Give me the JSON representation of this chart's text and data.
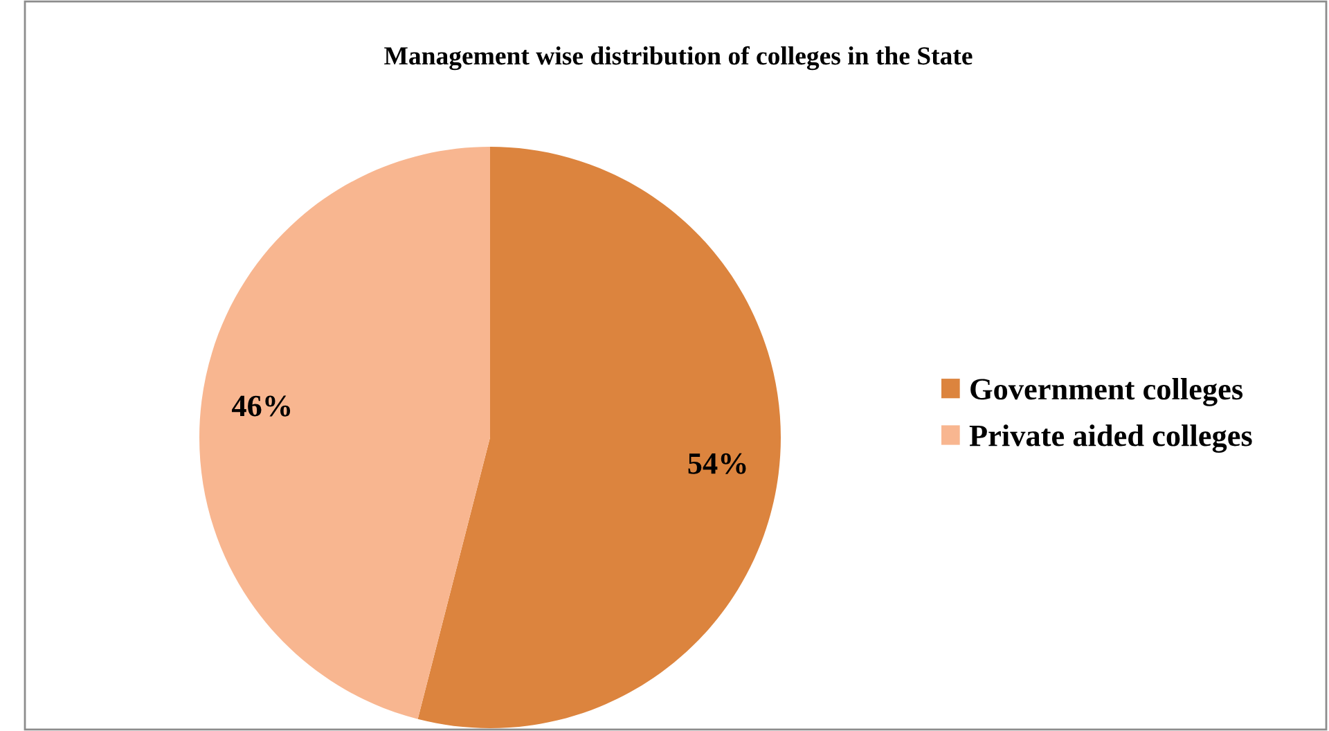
{
  "chart_data": {
    "type": "pie",
    "title": "Management wise distribution of colleges in the State",
    "categories": [
      "Government colleges",
      "Private aided colleges"
    ],
    "values": [
      54,
      46
    ],
    "colors": [
      "#dc843e",
      "#f8b690"
    ],
    "value_labels": [
      "54%",
      "46%"
    ],
    "legend": "right"
  }
}
